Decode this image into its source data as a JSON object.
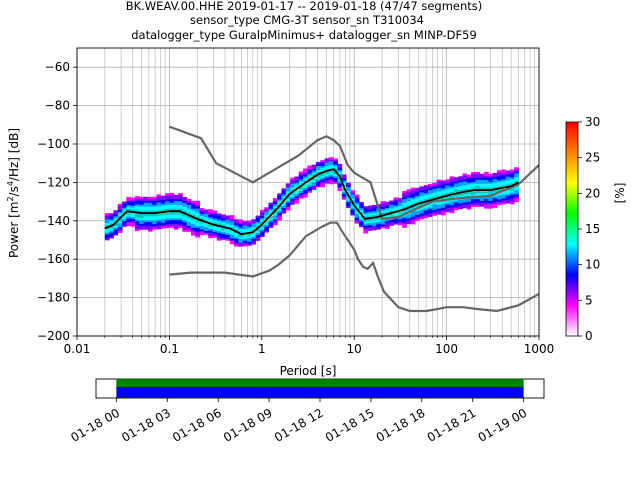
{
  "chart_data": {
    "type": "heatmap",
    "title_lines": [
      "BK.WEAV.00.HHE   2019-01-17 -- 2019-01-18  (47/47 segments)",
      "sensor_type CMG-3T sensor_sn T310034",
      "datalogger_type GuralpMinimus+ datalogger_sn MINP-DF59"
    ],
    "xlabel": "Period [s]",
    "ylabel_parts": [
      "Power [m",
      "2",
      "/s",
      "4",
      "/Hz] [dB]"
    ],
    "x_scale": "log",
    "xlim": [
      0.01,
      1000
    ],
    "ylim": [
      -200,
      -50
    ],
    "x_ticks": [
      {
        "value": 0.01,
        "label": "0.01"
      },
      {
        "value": 0.1,
        "label": "0.1"
      },
      {
        "value": 1,
        "label": "1"
      },
      {
        "value": 10,
        "label": "10"
      },
      {
        "value": 100,
        "label": "100"
      },
      {
        "value": 1000,
        "label": "1000"
      }
    ],
    "y_ticks": [
      {
        "value": -60,
        "label": "−60"
      },
      {
        "value": -80,
        "label": "−80"
      },
      {
        "value": -100,
        "label": "−100"
      },
      {
        "value": -120,
        "label": "−120"
      },
      {
        "value": -140,
        "label": "−140"
      },
      {
        "value": -160,
        "label": "−160"
      },
      {
        "value": -180,
        "label": "−180"
      },
      {
        "value": -200,
        "label": "−200"
      }
    ],
    "grid": true,
    "colorbar": {
      "label": "[%]",
      "range": [
        0,
        30
      ],
      "ticks": [
        {
          "value": 0,
          "label": "0"
        },
        {
          "value": 5,
          "label": "5"
        },
        {
          "value": 10,
          "label": "10"
        },
        {
          "value": 15,
          "label": "15"
        },
        {
          "value": 20,
          "label": "20"
        },
        {
          "value": 25,
          "label": "25"
        },
        {
          "value": 30,
          "label": "30"
        }
      ],
      "colors": [
        "#ffffff",
        "#ff00ff",
        "#0000ff",
        "#00ffff",
        "#00ff00",
        "#ffff00",
        "#ff8000",
        "#ff0000"
      ]
    },
    "mean_curve": [
      [
        0.02,
        -144
      ],
      [
        0.025,
        -142
      ],
      [
        0.03,
        -138
      ],
      [
        0.035,
        -135
      ],
      [
        0.05,
        -136
      ],
      [
        0.07,
        -136
      ],
      [
        0.1,
        -135
      ],
      [
        0.13,
        -135
      ],
      [
        0.2,
        -139
      ],
      [
        0.3,
        -142
      ],
      [
        0.45,
        -144
      ],
      [
        0.6,
        -147
      ],
      [
        0.8,
        -146
      ],
      [
        1.0,
        -142
      ],
      [
        1.5,
        -133
      ],
      [
        2.0,
        -126
      ],
      [
        3.0,
        -120
      ],
      [
        4.0,
        -116
      ],
      [
        5.0,
        -114
      ],
      [
        6.0,
        -113
      ],
      [
        7.0,
        -117
      ],
      [
        8.0,
        -124
      ],
      [
        10.0,
        -132
      ],
      [
        13.0,
        -139
      ],
      [
        18.0,
        -138
      ],
      [
        25.0,
        -136
      ],
      [
        35.0,
        -134
      ],
      [
        50.0,
        -131
      ],
      [
        70.0,
        -129
      ],
      [
        100.0,
        -127
      ],
      [
        150.0,
        -125
      ],
      [
        200.0,
        -124
      ],
      [
        300.0,
        -124
      ],
      [
        500.0,
        -122
      ],
      [
        600.0,
        -120
      ]
    ],
    "nlnm": [
      [
        0.1,
        -168
      ],
      [
        0.17,
        -167
      ],
      [
        0.4,
        -167
      ],
      [
        0.8,
        -169
      ],
      [
        1.2,
        -166
      ],
      [
        1.5,
        -163
      ],
      [
        2.0,
        -158
      ],
      [
        3.0,
        -148
      ],
      [
        4.5,
        -143
      ],
      [
        5.5,
        -141
      ],
      [
        6.5,
        -141
      ],
      [
        7.5,
        -146
      ],
      [
        10.0,
        -155
      ],
      [
        11.0,
        -160
      ],
      [
        12.5,
        -164
      ],
      [
        14.0,
        -165
      ],
      [
        16.0,
        -162
      ],
      [
        18.0,
        -169
      ],
      [
        21.0,
        -177
      ],
      [
        30.0,
        -185
      ],
      [
        40.0,
        -187
      ],
      [
        60.0,
        -187
      ],
      [
        80.0,
        -186
      ],
      [
        100.0,
        -185
      ],
      [
        150.0,
        -185
      ],
      [
        220.0,
        -186
      ],
      [
        350.0,
        -187
      ],
      [
        600.0,
        -184
      ],
      [
        1000.0,
        -178
      ]
    ],
    "nhnm": [
      [
        0.1,
        -91
      ],
      [
        0.22,
        -97
      ],
      [
        0.32,
        -110
      ],
      [
        0.8,
        -120
      ],
      [
        1.3,
        -114
      ],
      [
        2.5,
        -106
      ],
      [
        4.0,
        -98
      ],
      [
        5.0,
        -96
      ],
      [
        6.0,
        -98
      ],
      [
        7.0,
        -101
      ],
      [
        8.5,
        -111
      ],
      [
        10.0,
        -115
      ],
      [
        15.0,
        -120
      ],
      [
        20.0,
        -139
      ],
      [
        30.0,
        -138
      ],
      [
        70.0,
        -130
      ],
      [
        150.0,
        -128
      ],
      [
        300.0,
        -127
      ],
      [
        600.0,
        -121
      ],
      [
        1000.0,
        -111
      ]
    ],
    "timeline": {
      "tick_labels": [
        "01-18 00",
        "01-18 03",
        "01-18 06",
        "01-18 09",
        "01-18 12",
        "01-18 15",
        "01-18 18",
        "01-18 21",
        "01-19 00"
      ],
      "tick_hours": [
        0,
        3,
        6,
        9,
        12,
        15,
        18,
        21,
        24
      ],
      "axis_start_hour": -1.2,
      "axis_end_hour": 25.2,
      "data_start_hour": 0,
      "data_end_hour": 24,
      "top_color": "#008000",
      "bottom_color": "#0000ff"
    }
  }
}
